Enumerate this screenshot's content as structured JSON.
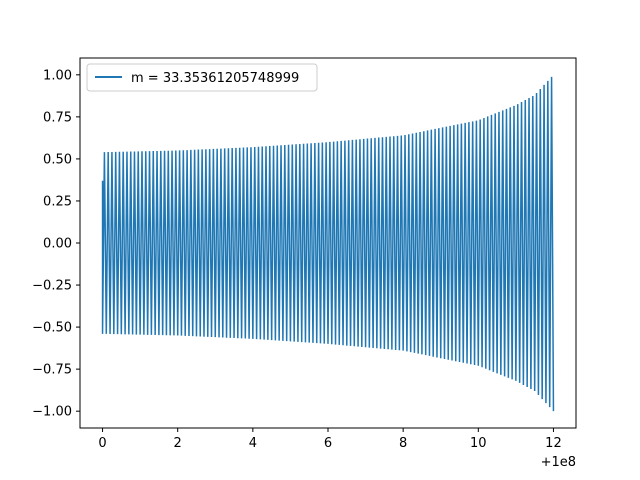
{
  "chart_data": {
    "type": "line",
    "title": "",
    "xlabel": "",
    "ylabel": "",
    "x_offset_label": "+1e8",
    "xlim": [
      -0.6,
      12.6
    ],
    "ylim": [
      -1.1,
      1.1
    ],
    "grid": false,
    "legend": {
      "placement": "upper-left",
      "entries": [
        "m = 33.35361205748999"
      ]
    },
    "x_ticks": [
      {
        "value": 0,
        "label": "0"
      },
      {
        "value": 2,
        "label": "2"
      },
      {
        "value": 4,
        "label": "4"
      },
      {
        "value": 6,
        "label": "6"
      },
      {
        "value": 8,
        "label": "8"
      },
      {
        "value": 10,
        "label": "10"
      },
      {
        "value": 12,
        "label": "12"
      }
    ],
    "y_ticks": [
      {
        "value": -1.0,
        "label": "−1.00"
      },
      {
        "value": -0.75,
        "label": "−0.75"
      },
      {
        "value": -0.5,
        "label": "−0.50"
      },
      {
        "value": -0.25,
        "label": "−0.25"
      },
      {
        "value": 0.0,
        "label": "0.00"
      },
      {
        "value": 0.25,
        "label": "0.25"
      },
      {
        "value": 0.5,
        "label": "0.50"
      },
      {
        "value": 0.75,
        "label": "0.75"
      },
      {
        "value": 1.0,
        "label": "1.00"
      }
    ],
    "series": [
      {
        "name": "m = 33.35361205748999",
        "color": "#1f77b4",
        "x_start": 0,
        "x_end": 12,
        "y_start": 0.37,
        "cycles": 120,
        "envelope": [
          {
            "x": 0,
            "amp": 0.54
          },
          {
            "x": 2,
            "amp": 0.55
          },
          {
            "x": 4,
            "amp": 0.57
          },
          {
            "x": 6,
            "amp": 0.6
          },
          {
            "x": 8,
            "amp": 0.64
          },
          {
            "x": 10,
            "amp": 0.73
          },
          {
            "x": 11,
            "amp": 0.82
          },
          {
            "x": 11.5,
            "amp": 0.88
          },
          {
            "x": 12,
            "amp": 1.0
          }
        ]
      }
    ]
  }
}
